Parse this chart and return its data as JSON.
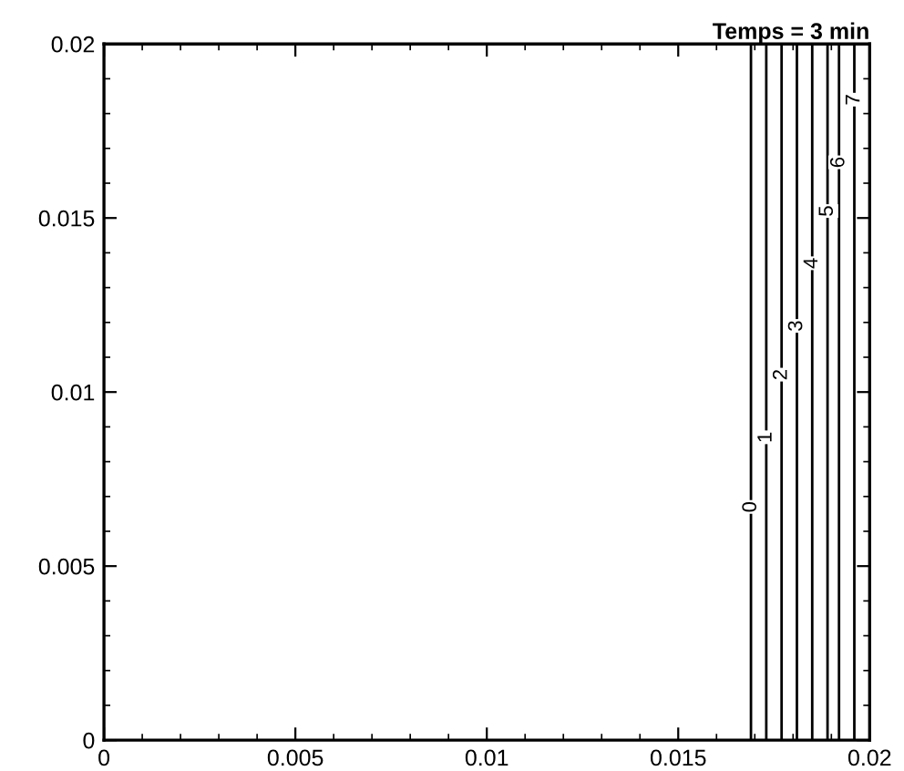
{
  "chart_data": {
    "type": "line",
    "title": "Temps = 3 min",
    "xlim": [
      0,
      0.02
    ],
    "ylim": [
      0,
      0.02
    ],
    "xticks": [
      0,
      0.005,
      0.01,
      0.015,
      0.02
    ],
    "yticks": [
      0,
      0.005,
      0.01,
      0.015,
      0.02
    ],
    "grid": false,
    "marker": "none",
    "line_style": "solid",
    "series": [
      {
        "color": "#000000",
        "x": [
          0.0169,
          0.0169
        ],
        "values": [
          0,
          0.02
        ]
      },
      {
        "color": "#000000",
        "x": [
          0.0173,
          0.0173
        ],
        "values": [
          0,
          0.02
        ]
      },
      {
        "color": "#000000",
        "x": [
          0.0177,
          0.0177
        ],
        "values": [
          0,
          0.02
        ]
      },
      {
        "color": "#000000",
        "x": [
          0.0181,
          0.0181
        ],
        "values": [
          0,
          0.02
        ]
      },
      {
        "color": "#000000",
        "x": [
          0.0185,
          0.0185
        ],
        "values": [
          0,
          0.02
        ]
      },
      {
        "color": "#000000",
        "x": [
          0.0189,
          0.0189
        ],
        "values": [
          0,
          0.02
        ]
      },
      {
        "color": "#000000",
        "x": [
          0.0192,
          0.0192
        ],
        "values": [
          0,
          0.02
        ]
      },
      {
        "color": "#000000",
        "x": [
          0.0196,
          0.0196
        ],
        "values": [
          0,
          0.02
        ]
      }
    ],
    "annotations": [
      {
        "text": "0",
        "x": 0.0169,
        "y": 0.0067
      },
      {
        "text": "1",
        "x": 0.0173,
        "y": 0.0087
      },
      {
        "text": "2",
        "x": 0.0177,
        "y": 0.0105
      },
      {
        "text": "3",
        "x": 0.0181,
        "y": 0.0119
      },
      {
        "text": "4",
        "x": 0.0185,
        "y": 0.0137
      },
      {
        "text": "5",
        "x": 0.0189,
        "y": 0.0152
      },
      {
        "text": "6",
        "x": 0.0192,
        "y": 0.0166
      },
      {
        "text": "7",
        "x": 0.0196,
        "y": 0.0184
      }
    ]
  }
}
